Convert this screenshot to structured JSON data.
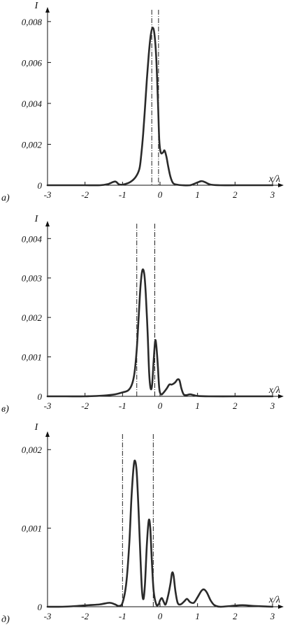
{
  "chart_data": [
    {
      "type": "line",
      "panel_label": "а)",
      "xlabel": "x/λ",
      "ylabel": "I",
      "xlim": [
        -3,
        3
      ],
      "ylim": [
        0,
        0.0082
      ],
      "x_ticks": [
        "-3",
        "-2",
        "-1",
        "0",
        "1",
        "2",
        "3"
      ],
      "y_ticks": [
        {
          "value": 0,
          "label": "0"
        },
        {
          "value": 0.002,
          "label": "0,002"
        },
        {
          "value": 0.004,
          "label": "0,004"
        },
        {
          "value": 0.006,
          "label": "0,006"
        },
        {
          "value": 0.008,
          "label": "0,008"
        }
      ],
      "vertical_lines": [
        -0.22,
        -0.04
      ],
      "series": [
        {
          "points": [
            [
              -3,
              0
            ],
            [
              -2.5,
              0
            ],
            [
              -2,
              0
            ],
            [
              -1.6,
              0
            ],
            [
              -1.4,
              5e-05
            ],
            [
              -1.2,
              0.00018
            ],
            [
              -1.1,
              5e-05
            ],
            [
              -1.0,
              3e-05
            ],
            [
              -0.8,
              0.00015
            ],
            [
              -0.65,
              0.0004
            ],
            [
              -0.55,
              0.0008
            ],
            [
              -0.5,
              0.0015
            ],
            [
              -0.45,
              0.0025
            ],
            [
              -0.4,
              0.0038
            ],
            [
              -0.35,
              0.0052
            ],
            [
              -0.3,
              0.0064
            ],
            [
              -0.25,
              0.0073
            ],
            [
              -0.2,
              0.0077
            ],
            [
              -0.15,
              0.0074
            ],
            [
              -0.1,
              0.0062
            ],
            [
              -0.05,
              0.0038
            ],
            [
              -0.02,
              0.0022
            ],
            [
              0.02,
              0.0016
            ],
            [
              0.08,
              0.0016
            ],
            [
              0.12,
              0.0017
            ],
            [
              0.17,
              0.0014
            ],
            [
              0.22,
              0.0009
            ],
            [
              0.28,
              0.0004
            ],
            [
              0.35,
              0.0001
            ],
            [
              0.45,
              3e-05
            ],
            [
              0.6,
              0
            ],
            [
              0.8,
              0
            ],
            [
              0.95,
              0.0001
            ],
            [
              1.1,
              0.0002
            ],
            [
              1.2,
              0.00015
            ],
            [
              1.35,
              3e-05
            ],
            [
              1.6,
              0
            ],
            [
              2,
              0
            ],
            [
              2.5,
              0
            ],
            [
              3,
              0
            ]
          ]
        }
      ]
    },
    {
      "type": "line",
      "panel_label": "в)",
      "xlabel": "x/λ",
      "ylabel": "I",
      "xlim": [
        -3,
        3
      ],
      "ylim": [
        0,
        0.0042
      ],
      "x_ticks": [
        "-3",
        "-2",
        "-1",
        "0",
        "1",
        "2",
        "3"
      ],
      "y_ticks": [
        {
          "value": 0,
          "label": "0"
        },
        {
          "value": 0.001,
          "label": "0,001"
        },
        {
          "value": 0.002,
          "label": "0,002"
        },
        {
          "value": 0.003,
          "label": "0,003"
        },
        {
          "value": 0.004,
          "label": "0,004"
        }
      ],
      "vertical_lines": [
        -0.62,
        -0.14
      ],
      "series": [
        {
          "points": [
            [
              -3,
              0
            ],
            [
              -2.5,
              0
            ],
            [
              -2,
              0
            ],
            [
              -1.5,
              2e-05
            ],
            [
              -1.2,
              5e-05
            ],
            [
              -1.0,
              0.0001
            ],
            [
              -0.85,
              0.00015
            ],
            [
              -0.75,
              0.0003
            ],
            [
              -0.68,
              0.0006
            ],
            [
              -0.62,
              0.0012
            ],
            [
              -0.57,
              0.002
            ],
            [
              -0.52,
              0.0028
            ],
            [
              -0.47,
              0.0032
            ],
            [
              -0.42,
              0.0031
            ],
            [
              -0.38,
              0.0026
            ],
            [
              -0.33,
              0.0016
            ],
            [
              -0.29,
              0.0006
            ],
            [
              -0.25,
              0.0002
            ],
            [
              -0.21,
              0.0003
            ],
            [
              -0.17,
              0.0009
            ],
            [
              -0.13,
              0.0014
            ],
            [
              -0.1,
              0.0013
            ],
            [
              -0.06,
              0.0008
            ],
            [
              -0.02,
              0.0002
            ],
            [
              0.03,
              5e-05
            ],
            [
              0.1,
              0.0001
            ],
            [
              0.18,
              0.0002
            ],
            [
              0.25,
              0.0003
            ],
            [
              0.32,
              0.0003
            ],
            [
              0.4,
              0.00035
            ],
            [
              0.47,
              0.00043
            ],
            [
              0.52,
              0.0004
            ],
            [
              0.57,
              0.0002
            ],
            [
              0.63,
              5e-05
            ],
            [
              0.7,
              3e-05
            ],
            [
              0.8,
              5e-05
            ],
            [
              0.9,
              3e-05
            ],
            [
              1.0,
              1e-05
            ],
            [
              1.3,
              0
            ],
            [
              2,
              0
            ],
            [
              2.5,
              0
            ],
            [
              3,
              0
            ]
          ]
        }
      ]
    },
    {
      "type": "line",
      "panel_label": "д)",
      "xlabel": "x/λ",
      "ylabel": "I",
      "xlim": [
        -3,
        3
      ],
      "ylim": [
        0,
        0.0021
      ],
      "x_ticks": [
        "-3",
        "-2",
        "-1",
        "0",
        "1",
        "2",
        "3"
      ],
      "y_ticks": [
        {
          "value": 0,
          "label": "0"
        },
        {
          "value": 0.001,
          "label": "0,001"
        },
        {
          "value": 0.002,
          "label": "0,002"
        }
      ],
      "vertical_lines": [
        -1.0,
        -0.18
      ],
      "series": [
        {
          "points": [
            [
              -3,
              0
            ],
            [
              -2.6,
              0
            ],
            [
              -2.2,
              1e-05
            ],
            [
              -1.9,
              2e-05
            ],
            [
              -1.6,
              3e-05
            ],
            [
              -1.35,
              5e-05
            ],
            [
              -1.2,
              3e-05
            ],
            [
              -1.1,
              1e-05
            ],
            [
              -1.0,
              5e-05
            ],
            [
              -0.9,
              0.0003
            ],
            [
              -0.82,
              0.0008
            ],
            [
              -0.76,
              0.0014
            ],
            [
              -0.7,
              0.0018
            ],
            [
              -0.66,
              0.00185
            ],
            [
              -0.62,
              0.0017
            ],
            [
              -0.57,
              0.0012
            ],
            [
              -0.52,
              0.0006
            ],
            [
              -0.48,
              0.0002
            ],
            [
              -0.44,
              0.0001
            ],
            [
              -0.4,
              0.0003
            ],
            [
              -0.35,
              0.0008
            ],
            [
              -0.3,
              0.0011
            ],
            [
              -0.26,
              0.001
            ],
            [
              -0.22,
              0.0006
            ],
            [
              -0.17,
              0.0002
            ],
            [
              -0.1,
              3e-05
            ],
            [
              -0.04,
              3e-05
            ],
            [
              0,
              8e-05
            ],
            [
              0.05,
              0.00011
            ],
            [
              0.1,
              6e-05
            ],
            [
              0.15,
              3e-05
            ],
            [
              0.22,
              0.00015
            ],
            [
              0.28,
              0.0003
            ],
            [
              0.32,
              0.00043
            ],
            [
              0.36,
              0.0004
            ],
            [
              0.41,
              0.0002
            ],
            [
              0.47,
              5e-05
            ],
            [
              0.55,
              3e-05
            ],
            [
              0.65,
              7e-05
            ],
            [
              0.72,
              0.0001
            ],
            [
              0.8,
              6e-05
            ],
            [
              0.9,
              5e-05
            ],
            [
              1.0,
              0.00012
            ],
            [
              1.1,
              0.0002
            ],
            [
              1.17,
              0.00022
            ],
            [
              1.25,
              0.00018
            ],
            [
              1.35,
              8e-05
            ],
            [
              1.45,
              2e-05
            ],
            [
              1.6,
              0
            ],
            [
              1.9,
              1e-05
            ],
            [
              2.2,
              2e-05
            ],
            [
              2.5,
              1e-05
            ],
            [
              3,
              0
            ]
          ]
        }
      ]
    }
  ]
}
